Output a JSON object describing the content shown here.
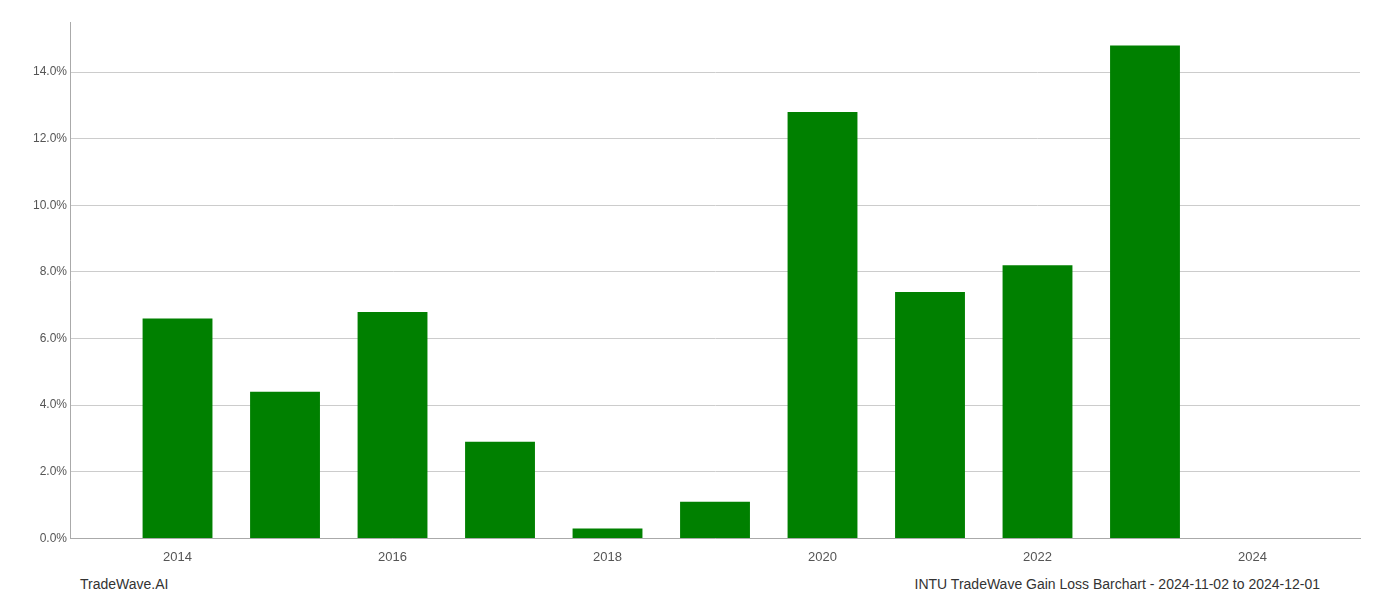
{
  "chart_data": {
    "type": "bar",
    "x": [
      2014,
      2015,
      2016,
      2017,
      2018,
      2019,
      2020,
      2021,
      2022,
      2023
    ],
    "values": [
      0.066,
      0.044,
      0.068,
      0.029,
      0.003,
      0.011,
      0.128,
      0.074,
      0.082,
      0.148
    ],
    "color": "#008000",
    "xlim": [
      2013.0,
      2025.0
    ],
    "xticks": [
      2014,
      2016,
      2018,
      2020,
      2022,
      2024
    ],
    "ylim": [
      0,
      0.155
    ],
    "yticks": [
      {
        "value": 0.0,
        "label": "0.0%"
      },
      {
        "value": 0.02,
        "label": "2.0%"
      },
      {
        "value": 0.04,
        "label": "4.0%"
      },
      {
        "value": 0.06,
        "label": "6.0%"
      },
      {
        "value": 0.08,
        "label": "8.0%"
      },
      {
        "value": 0.1,
        "label": "10.0%"
      },
      {
        "value": 0.12,
        "label": "12.0%"
      },
      {
        "value": 0.14,
        "label": "14.0%"
      }
    ],
    "grid": true,
    "annotations": [
      "TradeWave.AI",
      "INTU TradeWave Gain Loss Barchart - 2024-11-02 to 2024-12-01"
    ]
  }
}
